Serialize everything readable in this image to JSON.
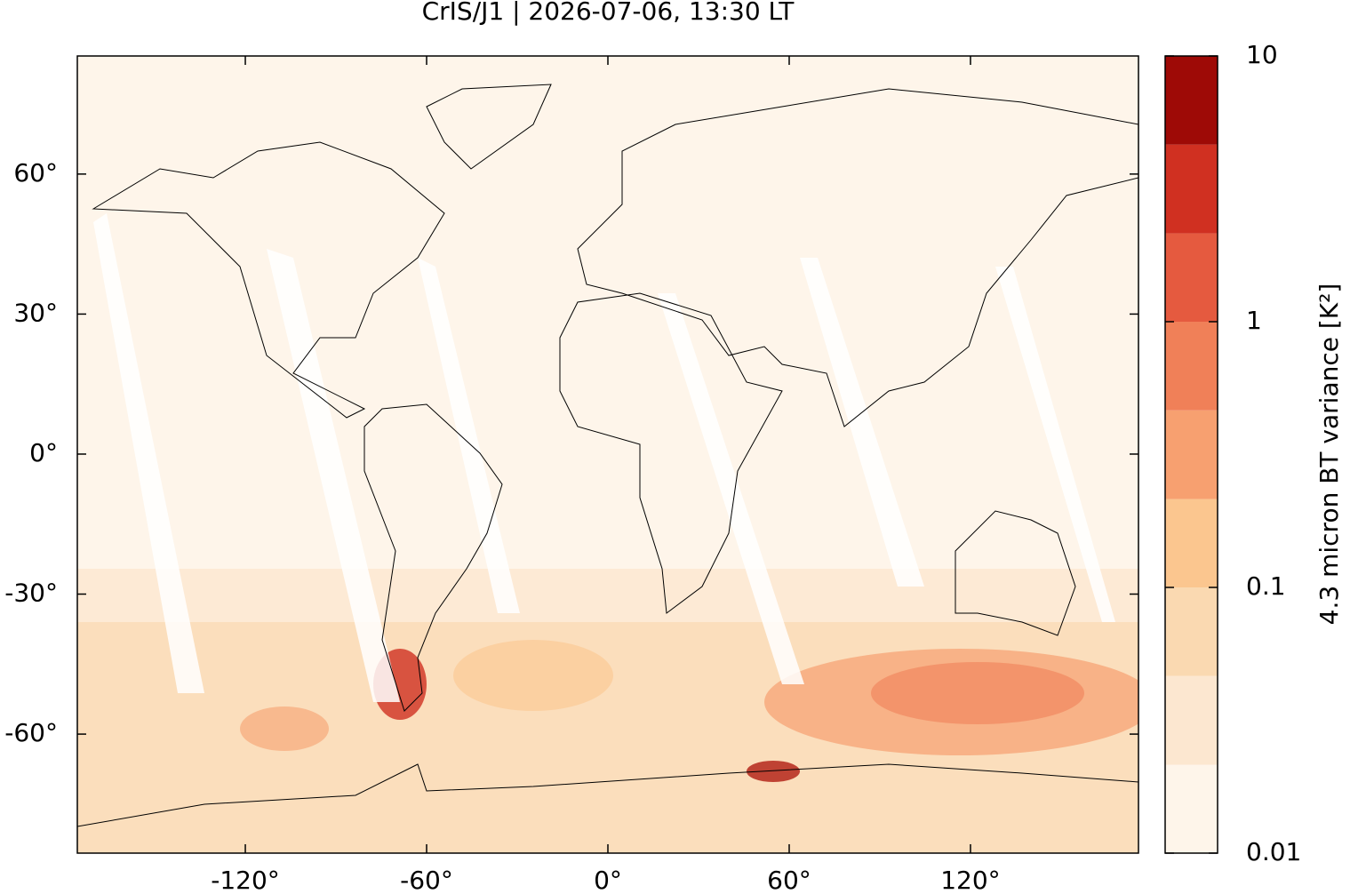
{
  "chart_data": {
    "type": "map",
    "title": "CrIS/J1 | 2026-07-06, 13:30 LT",
    "xlim": [
      -175.6,
      175.6
    ],
    "ylim": [
      -85.5,
      85.3
    ],
    "xticks": [
      {
        "value": -120,
        "label": "-120°"
      },
      {
        "value": -60,
        "label": "-60°"
      },
      {
        "value": 0,
        "label": "0°"
      },
      {
        "value": 60,
        "label": "60°"
      },
      {
        "value": 120,
        "label": "120°"
      }
    ],
    "yticks": [
      {
        "value": -60,
        "label": "-60°"
      },
      {
        "value": -30,
        "label": "-30°"
      },
      {
        "value": 0,
        "label": "0°"
      },
      {
        "value": 30,
        "label": "30°"
      },
      {
        "value": 60,
        "label": "60°"
      }
    ],
    "colorbar": {
      "label": "4.3 micron BT variance [K²]",
      "log": true,
      "lim": [
        0.01,
        10
      ],
      "ticks": [
        0.01,
        0.1,
        1,
        10
      ],
      "levels": [
        0.01,
        0.0215,
        0.0464,
        0.1,
        0.215,
        0.464,
        1,
        2.15,
        4.64,
        10
      ],
      "colors": [
        "#fef5ea",
        "#fce7d0",
        "#fad9b1",
        "#fbc68f",
        "#f7a070",
        "#f08058",
        "#e55a3f",
        "#d03021",
        "#9e0a06"
      ]
    }
  }
}
